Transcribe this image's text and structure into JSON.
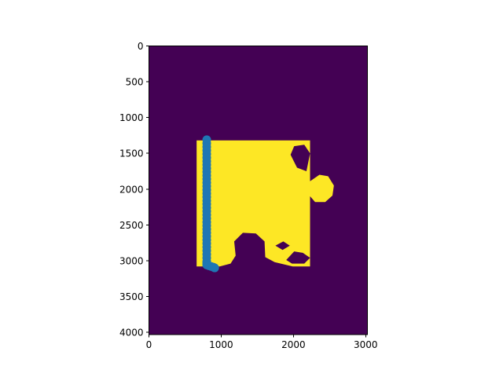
{
  "chart_data": {
    "type": "heatmap",
    "title": "",
    "xlabel": "",
    "ylabel": "",
    "xlim": [
      0,
      3024
    ],
    "ylim": [
      4032,
      0
    ],
    "x_ticks": [
      0,
      1000,
      2000,
      3000
    ],
    "y_ticks": [
      0,
      500,
      1000,
      1500,
      2000,
      2500,
      3000,
      3500,
      4000
    ],
    "x_tick_labels": [
      "0",
      "1000",
      "2000",
      "3000"
    ],
    "y_tick_labels": [
      "0",
      "500",
      "1000",
      "1500",
      "2000",
      "2500",
      "3000",
      "3500",
      "4000"
    ],
    "colormap": "viridis",
    "colors": {
      "background_class": "#440154",
      "mask_class": "#fde725",
      "scatter_series": "#1f77b4",
      "axes": "#000000"
    },
    "mask_shape": "jigsaw-puzzle-piece",
    "mask_outline_data_units": [
      [
        660,
        1320
      ],
      [
        2230,
        1320
      ],
      [
        2230,
        1890
      ],
      [
        2360,
        1800
      ],
      [
        2480,
        1820
      ],
      [
        2560,
        1950
      ],
      [
        2540,
        2090
      ],
      [
        2440,
        2180
      ],
      [
        2300,
        2180
      ],
      [
        2230,
        2100
      ],
      [
        2230,
        3080
      ],
      [
        1990,
        3080
      ],
      [
        1740,
        3020
      ],
      [
        1610,
        2950
      ],
      [
        1600,
        2730
      ],
      [
        1480,
        2620
      ],
      [
        1300,
        2610
      ],
      [
        1180,
        2730
      ],
      [
        1200,
        2930
      ],
      [
        1130,
        3040
      ],
      [
        980,
        3080
      ],
      [
        660,
        3080
      ]
    ],
    "mask_holes_data_units": [
      [
        [
          2010,
          1400
        ],
        [
          2150,
          1380
        ],
        [
          2230,
          1500
        ],
        [
          2180,
          1750
        ],
        [
          2050,
          1700
        ],
        [
          1960,
          1520
        ]
      ],
      [
        [
          1900,
          2990
        ],
        [
          2010,
          2870
        ],
        [
          2130,
          2890
        ],
        [
          2230,
          2960
        ],
        [
          2150,
          3040
        ],
        [
          1980,
          3040
        ]
      ],
      [
        [
          1750,
          2790
        ],
        [
          1860,
          2730
        ],
        [
          1950,
          2790
        ],
        [
          1850,
          2850
        ]
      ]
    ],
    "series": [
      {
        "type": "scatter",
        "x": [
          800,
          800,
          800,
          800,
          800,
          800,
          800,
          800,
          800,
          800,
          800,
          800,
          800,
          800,
          800,
          800,
          800,
          800,
          800,
          800,
          800,
          800,
          800,
          800,
          800,
          800,
          800,
          800,
          800,
          800,
          800,
          800,
          800,
          800,
          800,
          800,
          800,
          800,
          830,
          860,
          890,
          910
        ],
        "y": [
          1310,
          1360,
          1410,
          1460,
          1510,
          1560,
          1610,
          1660,
          1710,
          1760,
          1810,
          1860,
          1910,
          1960,
          2010,
          2060,
          2110,
          2160,
          2210,
          2260,
          2310,
          2360,
          2410,
          2460,
          2510,
          2560,
          2610,
          2660,
          2710,
          2760,
          2810,
          2860,
          2910,
          2960,
          3010,
          3030,
          3050,
          3060,
          3070,
          3080,
          3090,
          3100
        ]
      }
    ]
  }
}
